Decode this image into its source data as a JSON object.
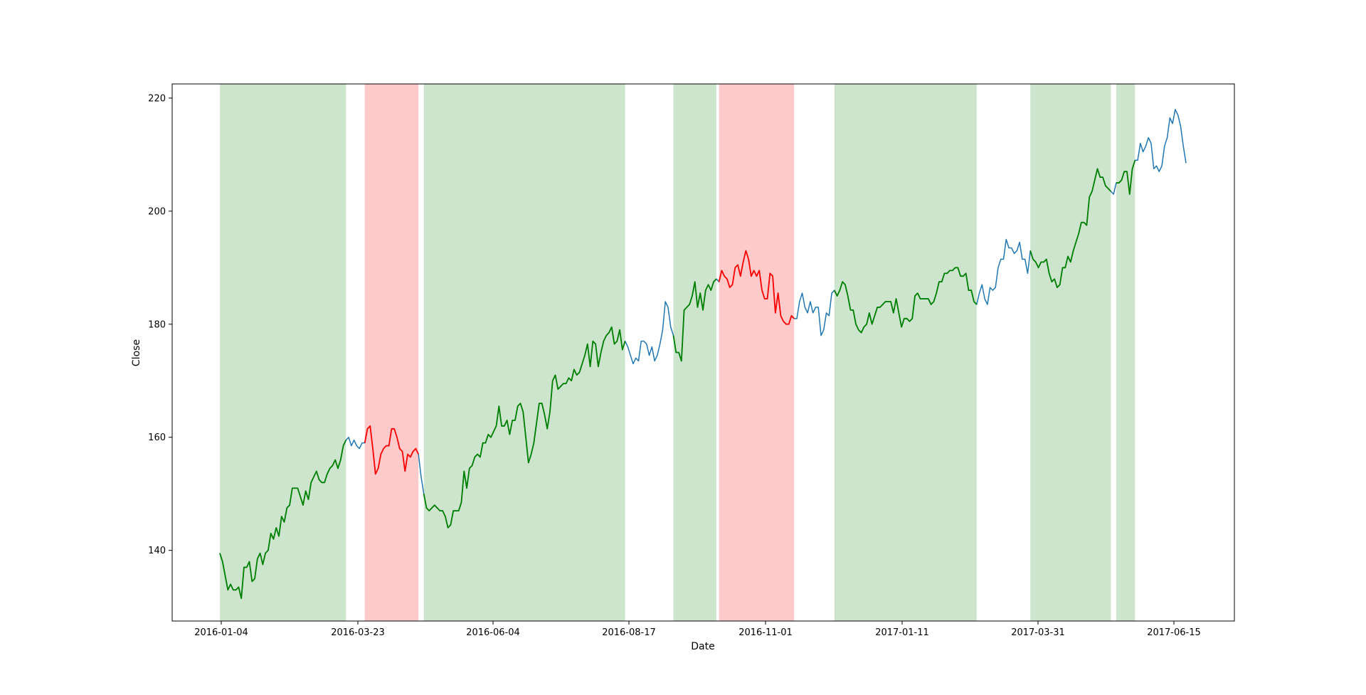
{
  "chart_data": {
    "type": "line",
    "title": "",
    "xlabel": "Date",
    "ylabel": "Close",
    "x_tick_labels": [
      "2016-01-04",
      "2016-03-23",
      "2016-06-04",
      "2016-08-17",
      "2016-11-01",
      "2017-01-11",
      "2017-03-31",
      "2017-06-15"
    ],
    "y_ticks": [
      140,
      160,
      180,
      200,
      220
    ],
    "ylim": [
      127.5,
      222.5
    ],
    "grid": false,
    "colors": {
      "base_line": "#1f77b4",
      "up_line": "#008000",
      "down_line": "#ff0000",
      "up_band": "#cde5cd",
      "down_band": "#fecaca"
    },
    "series": [
      {
        "values": [
          139.5,
          138,
          135.5,
          133,
          134,
          133,
          133,
          133.5,
          131.5,
          137,
          137,
          138,
          134.5,
          135,
          138.5,
          139.5,
          137.5,
          139.5,
          140,
          143,
          142,
          144,
          142.5,
          146,
          145,
          147.5,
          148,
          151,
          151,
          151,
          149.5,
          148,
          150.5,
          149,
          152,
          153,
          154,
          152.5,
          152,
          152,
          153.5,
          154.5,
          155,
          156,
          154.5,
          156,
          158.5,
          159.5,
          160,
          158.5,
          159.5,
          158.5,
          158,
          159,
          159,
          161.5,
          162,
          158,
          153.5,
          154.5,
          157,
          158,
          158.5,
          158.5,
          161.5,
          161.5,
          160,
          158,
          157.5,
          154,
          157,
          156.5,
          157.5,
          158,
          157,
          153,
          150,
          147.5,
          147,
          147.5,
          148,
          147.5,
          147,
          147,
          146,
          144,
          144.5,
          147,
          147,
          147,
          148.5,
          154,
          151,
          154.5,
          155,
          156.5,
          157,
          156.5,
          159,
          159,
          160.5,
          160,
          161,
          162,
          165.5,
          162,
          162,
          163,
          160.5,
          163,
          163,
          165.5,
          166,
          164.5,
          160,
          155.5,
          157,
          159,
          162.5,
          166,
          166,
          164,
          161.5,
          164.5,
          170,
          171,
          168.5,
          169,
          169.5,
          169.5,
          170.5,
          170,
          172,
          171,
          171.5,
          173,
          174.5,
          176.5,
          172.5,
          177,
          176.5,
          172.5,
          175,
          177,
          178,
          178.5,
          179.5,
          176.5,
          177,
          179,
          175.5,
          177,
          176,
          174.5,
          173,
          174,
          173.5,
          177,
          177,
          176.5,
          174.5,
          176,
          173.5,
          174.5,
          176.5,
          179,
          184,
          183,
          179.5,
          178,
          175,
          175,
          173.5,
          182.5,
          183,
          183.5,
          185,
          187.5,
          183,
          185.5,
          182.5,
          186,
          187,
          186,
          187.5,
          188,
          187.5,
          189.5,
          188.5,
          188,
          186.5,
          187,
          190,
          190.5,
          188.5,
          191,
          193,
          191.5,
          188.5,
          189.5,
          188.5,
          189.5,
          186,
          184.5,
          184.5,
          189,
          188.5,
          182,
          185.5,
          181.5,
          180.5,
          180,
          180,
          181.5,
          181,
          181,
          184,
          185.5,
          183,
          182,
          184,
          182,
          183,
          183,
          178,
          179,
          182,
          181.5,
          185.5,
          186,
          185,
          186,
          187.5,
          187,
          185,
          182.5,
          182.5,
          180,
          179,
          178.5,
          179.5,
          180,
          182,
          180,
          181.5,
          183,
          183,
          183.5,
          184,
          184,
          184,
          182,
          184.5,
          182,
          179.5,
          181,
          181,
          180.5,
          181,
          185,
          185.5,
          184.5,
          184.5,
          184.5,
          184.5,
          183.5,
          184,
          185.5,
          187.5,
          187.5,
          189,
          189,
          189.5,
          189.5,
          190,
          190,
          188.5,
          188.5,
          189,
          186,
          186,
          184,
          183.5,
          185.5,
          187,
          184.5,
          183.5,
          186.5,
          186,
          186.5,
          190,
          191.5,
          191.5,
          195,
          193.5,
          193.5,
          192.5,
          193,
          194.5,
          191.5,
          191.5,
          189,
          193,
          191.5,
          191,
          190,
          191,
          191,
          191.5,
          189,
          187.5,
          188,
          186.5,
          187,
          190,
          190,
          192,
          191,
          193,
          194.5,
          196,
          198,
          198,
          197.5,
          202.5,
          203.5,
          205.5,
          207.5,
          206,
          206,
          204.5,
          204,
          203.5,
          203,
          205,
          205,
          205.5,
          207,
          207,
          203,
          207.5,
          209,
          209,
          212,
          210.5,
          211.5,
          213,
          212,
          207.5,
          208,
          207,
          208,
          211.5,
          213,
          216.5,
          215.5,
          218,
          217,
          215,
          211.5,
          208.5
        ]
      }
    ],
    "shaded_regions": [
      {
        "type": "up",
        "start": 0,
        "end": 47
      },
      {
        "type": "down",
        "start": 54,
        "end": 74
      },
      {
        "type": "up",
        "start": 76,
        "end": 151
      },
      {
        "type": "up",
        "start": 169,
        "end": 185
      },
      {
        "type": "down",
        "start": 186,
        "end": 214
      },
      {
        "type": "up",
        "start": 229,
        "end": 282
      },
      {
        "type": "up",
        "start": 302,
        "end": 332
      },
      {
        "type": "up",
        "start": 334,
        "end": 341
      }
    ]
  }
}
